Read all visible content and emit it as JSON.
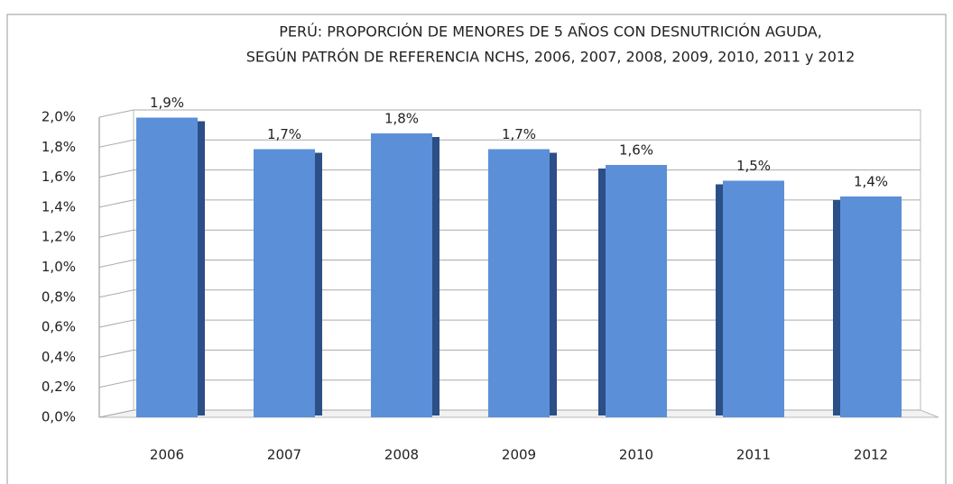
{
  "chart_data": {
    "type": "bar",
    "title": [
      "PERÚ: PROPORCIÓN DE MENORES DE 5 AÑOS CON DESNUTRICIÓN AGUDA,",
      "SEGÚN PATRÓN DE REFERENCIA NCHS, 2006, 2007, 2008, 2009, 2010, 2011 y 2012"
    ],
    "categories": [
      "2006",
      "2007",
      "2008",
      "2009",
      "2010",
      "2011",
      "2012"
    ],
    "values": [
      1.9,
      1.7,
      1.8,
      1.7,
      1.6,
      1.5,
      1.4
    ],
    "value_labels": [
      "1,9%",
      "1,7%",
      "1,8%",
      "1,7%",
      "1,6%",
      "1,5%",
      "1,4%"
    ],
    "color": "#5b8fd8",
    "ylim": [
      0,
      2
    ],
    "yticks": [
      {
        "value": 0,
        "label": "0,0%"
      },
      {
        "value": 0.2,
        "label": "0,2%"
      },
      {
        "value": 0.4,
        "label": "0,4%"
      },
      {
        "value": 0.6,
        "label": "0,6%"
      },
      {
        "value": 0.8,
        "label": "0,8%"
      },
      {
        "value": 1.0,
        "label": "1,0%"
      },
      {
        "value": 1.2,
        "label": "1,2%"
      },
      {
        "value": 1.4,
        "label": "1,4%"
      },
      {
        "value": 1.6,
        "label": "1,6%"
      },
      {
        "value": 1.8,
        "label": "1,8%"
      },
      {
        "value": 2.0,
        "label": "2,0%"
      }
    ],
    "grid": true
  }
}
